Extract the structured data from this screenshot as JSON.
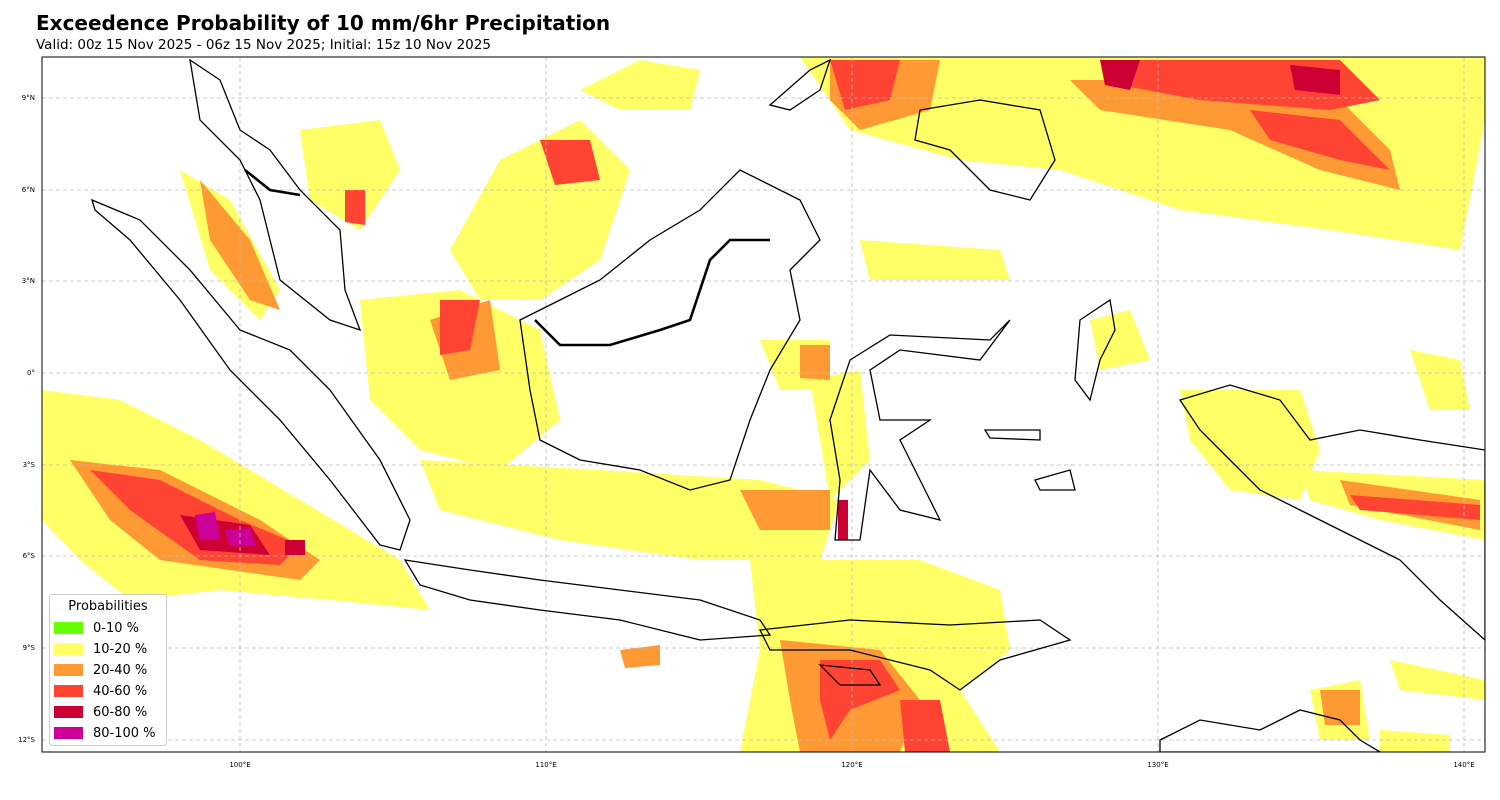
{
  "header": {
    "title": "Exceedence Probability of 10 mm/6hr Precipitation",
    "subtitle": "Valid: 00z 15 Nov 2025 - 06z 15 Nov 2025; Initial: 15z 10 Nov 2025"
  },
  "map": {
    "lon_range": [
      93.5,
      140.7
    ],
    "lat_range": [
      -12.5,
      10.3
    ],
    "gridlines": true,
    "lon_ticks": [
      "100°E",
      "110°E",
      "120°E",
      "130°E",
      "140°E"
    ],
    "lat_ticks": [
      "9°N",
      "6°N",
      "3°N",
      "0°",
      "3°S",
      "6°S",
      "9°S",
      "12°S"
    ]
  },
  "legend": {
    "title": "Probabilities",
    "placement": "lower-left",
    "items": [
      {
        "label": "0-10 %",
        "color": "#66ff00"
      },
      {
        "label": "10-20 %",
        "color": "#ffff66"
      },
      {
        "label": "20-40 %",
        "color": "#ff9933"
      },
      {
        "label": "40-60 %",
        "color": "#ff4433"
      },
      {
        "label": "60-80 %",
        "color": "#cc0033"
      },
      {
        "label": "80-100 %",
        "color": "#cc0099"
      }
    ]
  }
}
